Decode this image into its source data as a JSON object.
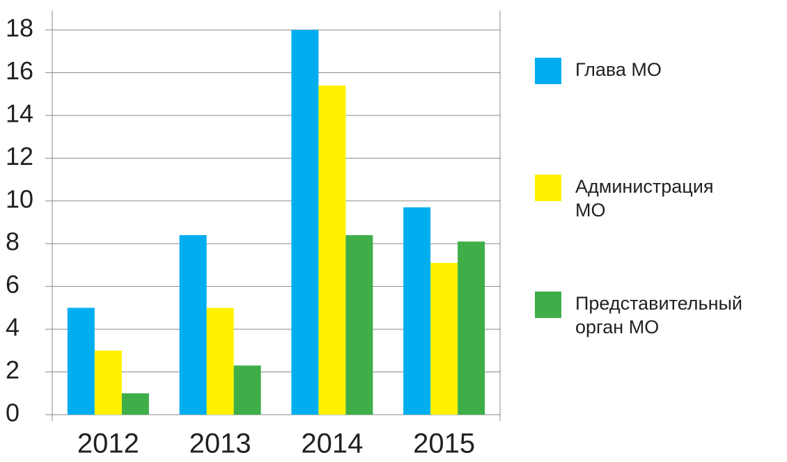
{
  "chart_data": {
    "type": "bar",
    "categories": [
      "2012",
      "2013",
      "2014",
      "2015"
    ],
    "series": [
      {
        "name": "Глава МО",
        "color": "#00aeef",
        "values": [
          5,
          8.4,
          18,
          9.7
        ]
      },
      {
        "name": "Администрация МО",
        "color": "#fff200",
        "values": [
          3,
          5,
          15.4,
          7.1
        ]
      },
      {
        "name": "Представительный орган МО",
        "color": "#3fae49",
        "values": [
          1,
          2.3,
          8.4,
          8.1
        ]
      }
    ],
    "ylim": [
      0,
      18
    ],
    "yticks": [
      0,
      2,
      4,
      6,
      8,
      10,
      12,
      14,
      16,
      18
    ],
    "grid": true,
    "legend": "right"
  }
}
